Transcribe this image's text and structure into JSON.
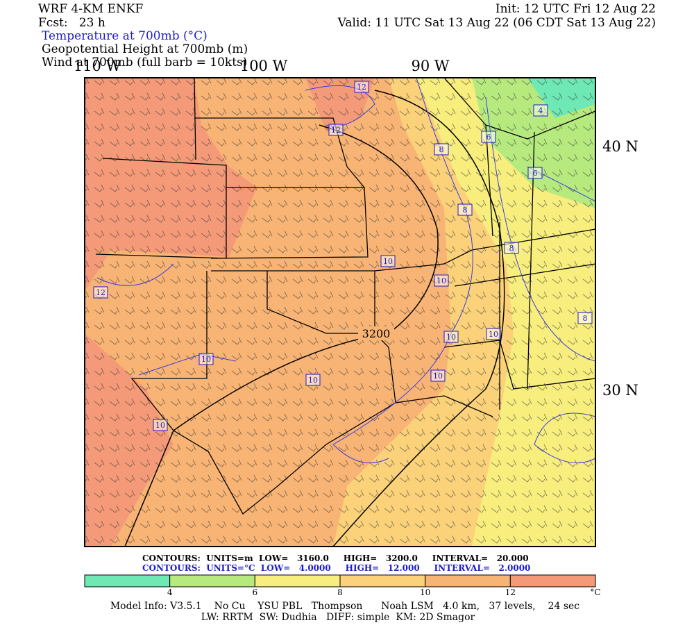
{
  "header": {
    "model": "WRF 4-KM ENKF",
    "fcst": "Fcst:   23 h",
    "init": "Init: 12 UTC Fri 12 Aug 22",
    "valid": "Valid: 11 UTC Sat 13 Aug 22 (06 CDT Sat 13 Aug 22)",
    "fields": [
      "Temperature at 700mb (°C)",
      "Geopotential Height at 700mb (m)",
      "Wind at 700mb (full barb = 10kts)"
    ]
  },
  "map": {
    "lon_labels": [
      "110 W",
      "100 W",
      "90 W"
    ],
    "lat_labels": [
      "40 N",
      "30 N"
    ],
    "contour_labels": [
      "12",
      "12",
      "8",
      "6",
      "4",
      "6",
      "8",
      "8",
      "10",
      "10",
      "12",
      "8",
      "3200",
      "10",
      "10",
      "10",
      "10",
      "10",
      "10"
    ]
  },
  "footer": {
    "height_contours": "CONTOURS:  UNITS=m  LOW=   3160.0     HIGH=   3200.0     INTERVAL=   20.000",
    "temp_contours": "CONTOURS:  UNITS=°C  LOW=   4.0000     HIGH=   12.000     INTERVAL=   2.0000",
    "model_info": "Model Info: V3.5.1    No Cu    YSU PBL   Thompson      Noah LSM   4.0 km,   37 levels,    24 sec",
    "model_info2": "LW: RRTM  SW: Dudhia   DIFF: simple  KM: 2D Smagor"
  },
  "colorbar": {
    "ticks": [
      4,
      6,
      8,
      10,
      12
    ],
    "unit": "°C",
    "colors": [
      "#6ee8b4",
      "#b6ea7e",
      "#f8ee7e",
      "#fbd27a",
      "#f8b474",
      "#f49a78"
    ]
  }
}
